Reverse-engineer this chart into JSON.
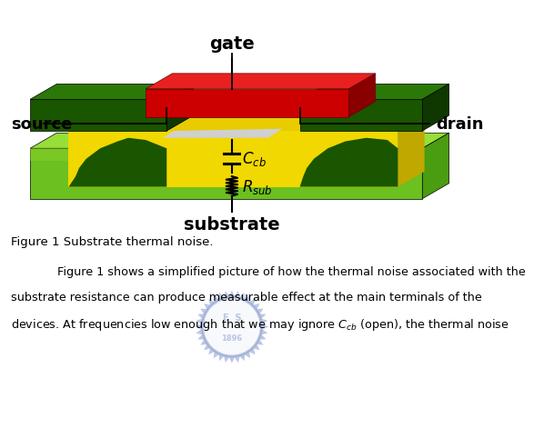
{
  "bg_color": "#ffffff",
  "green_sub_front": "#6abf20",
  "green_sub_top": "#9ade30",
  "green_sub_right": "#4a9010",
  "green_sub_front_grad": "#78c828",
  "green_dark_front": "#1a5000",
  "green_dark_top": "#2a7000",
  "green_dark_right": "#0f3800",
  "yellow_front": "#f0d800",
  "yellow_top": "#e8d000",
  "yellow_right": "#c8b000",
  "gate_ox_color": "#c8c8c8",
  "red_front": "#cc0000",
  "red_top": "#e02020",
  "red_right": "#880000",
  "black": "#000000",
  "gate_label": "gate",
  "source_label": "source",
  "drain_label": "drain",
  "substrate_label": "substrate",
  "caption": "Figure 1 Substrate thermal noise.",
  "line1": "    Figure 1 shows a simplified picture of how the thermal noise associated with the",
  "line2": "substrate resistance can produce measurable effect at the main terminals of the",
  "line3": "devices. At frequencies low enough that we may ignore $C_{cb}$ (open), the thermal noise"
}
